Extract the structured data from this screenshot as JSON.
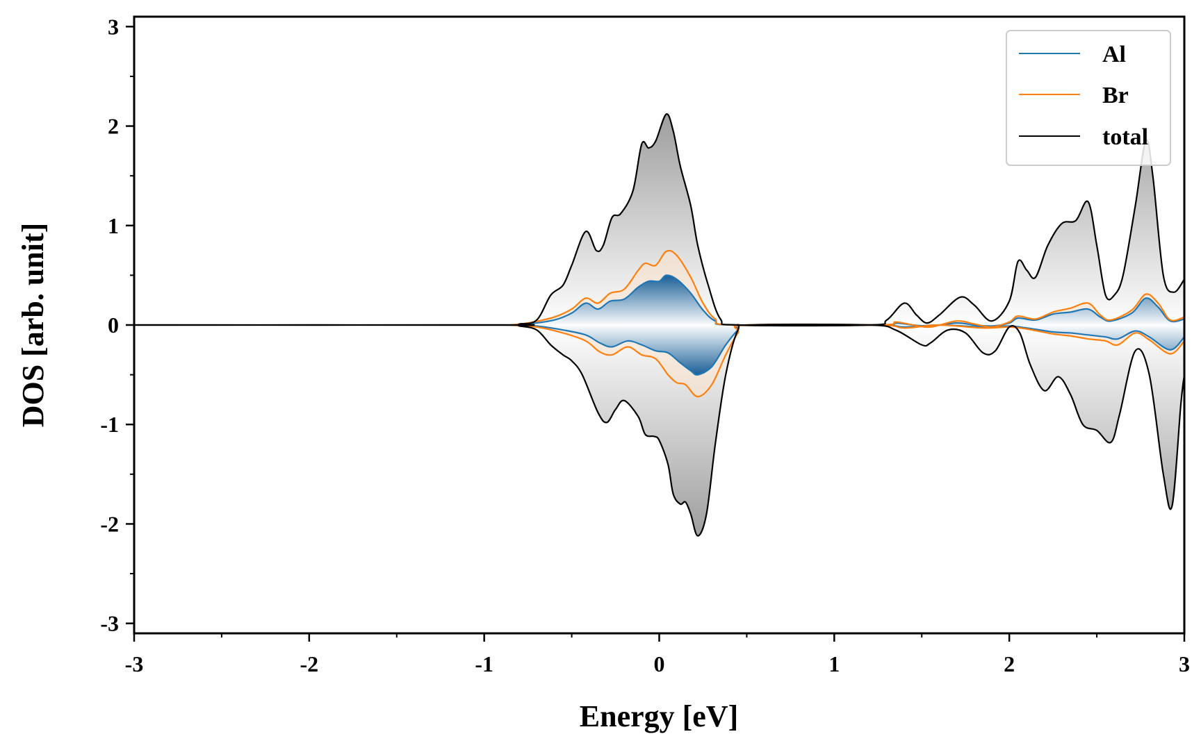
{
  "chart_data": {
    "type": "area",
    "title": "",
    "xlabel": "Energy [eV]",
    "ylabel": "DOS [arb. unit]",
    "xlim": [
      -3,
      3
    ],
    "ylim": [
      -3.1,
      3.1
    ],
    "x_ticks": [
      -3,
      -2,
      -1,
      0,
      1,
      2,
      3
    ],
    "x_tick_labels": [
      "-3",
      "-2",
      "-1",
      "0",
      "1",
      "2",
      "3"
    ],
    "y_ticks": [
      -3,
      -2,
      -1,
      0,
      1,
      2,
      3
    ],
    "y_tick_labels": [
      "-3",
      "-2",
      "-1",
      "0",
      "1",
      "2",
      "3"
    ],
    "grid": false,
    "legend_position": "top-right",
    "spin_resolved": true,
    "series": [
      {
        "name": "Al",
        "color": "#1f77b4",
        "fill": "gradient-blue",
        "up": [
          [
            -0.85,
            0.0
          ],
          [
            -0.75,
            0.01
          ],
          [
            -0.6,
            0.05
          ],
          [
            -0.5,
            0.12
          ],
          [
            -0.42,
            0.22
          ],
          [
            -0.35,
            0.16
          ],
          [
            -0.28,
            0.24
          ],
          [
            -0.2,
            0.26
          ],
          [
            -0.12,
            0.38
          ],
          [
            -0.06,
            0.44
          ],
          [
            0.0,
            0.44
          ],
          [
            0.04,
            0.5
          ],
          [
            0.1,
            0.46
          ],
          [
            0.18,
            0.32
          ],
          [
            0.25,
            0.15
          ],
          [
            0.32,
            0.04
          ],
          [
            0.42,
            0.0
          ],
          [
            1.25,
            0.0
          ],
          [
            1.35,
            0.02
          ],
          [
            1.45,
            0.0
          ],
          [
            1.55,
            -0.01
          ],
          [
            1.7,
            0.02
          ],
          [
            1.8,
            0.0
          ],
          [
            1.9,
            -0.01
          ],
          [
            2.0,
            0.02
          ],
          [
            2.05,
            0.07
          ],
          [
            2.15,
            0.05
          ],
          [
            2.25,
            0.11
          ],
          [
            2.35,
            0.13
          ],
          [
            2.45,
            0.16
          ],
          [
            2.52,
            0.08
          ],
          [
            2.58,
            0.04
          ],
          [
            2.7,
            0.12
          ],
          [
            2.78,
            0.27
          ],
          [
            2.85,
            0.18
          ],
          [
            2.92,
            0.04
          ],
          [
            3.0,
            0.06
          ]
        ],
        "down": [
          [
            -0.85,
            0.0
          ],
          [
            -0.7,
            -0.01
          ],
          [
            -0.55,
            -0.05
          ],
          [
            -0.42,
            -0.1
          ],
          [
            -0.34,
            -0.18
          ],
          [
            -0.27,
            -0.22
          ],
          [
            -0.18,
            -0.16
          ],
          [
            -0.1,
            -0.2
          ],
          [
            -0.02,
            -0.26
          ],
          [
            0.05,
            -0.28
          ],
          [
            0.12,
            -0.38
          ],
          [
            0.18,
            -0.46
          ],
          [
            0.22,
            -0.5
          ],
          [
            0.3,
            -0.42
          ],
          [
            0.38,
            -0.2
          ],
          [
            0.45,
            -0.05
          ],
          [
            0.5,
            0.0
          ],
          [
            1.25,
            0.0
          ],
          [
            1.4,
            -0.02
          ],
          [
            1.6,
            0.0
          ],
          [
            1.85,
            -0.02
          ],
          [
            2.0,
            -0.01
          ],
          [
            2.1,
            -0.03
          ],
          [
            2.25,
            -0.07
          ],
          [
            2.35,
            -0.08
          ],
          [
            2.45,
            -0.1
          ],
          [
            2.55,
            -0.12
          ],
          [
            2.62,
            -0.14
          ],
          [
            2.72,
            -0.06
          ],
          [
            2.8,
            -0.12
          ],
          [
            2.92,
            -0.25
          ],
          [
            3.0,
            -0.12
          ]
        ]
      },
      {
        "name": "Br",
        "color": "#ff7f0e",
        "fill": "#fbe3cf",
        "up": [
          [
            -0.85,
            0.0
          ],
          [
            -0.75,
            0.02
          ],
          [
            -0.6,
            0.08
          ],
          [
            -0.5,
            0.16
          ],
          [
            -0.42,
            0.27
          ],
          [
            -0.35,
            0.22
          ],
          [
            -0.28,
            0.32
          ],
          [
            -0.2,
            0.36
          ],
          [
            -0.12,
            0.55
          ],
          [
            -0.08,
            0.62
          ],
          [
            -0.02,
            0.6
          ],
          [
            0.04,
            0.74
          ],
          [
            0.1,
            0.7
          ],
          [
            0.18,
            0.48
          ],
          [
            0.25,
            0.22
          ],
          [
            0.32,
            0.06
          ],
          [
            0.42,
            0.0
          ],
          [
            1.25,
            0.0
          ],
          [
            1.35,
            0.03
          ],
          [
            1.45,
            0.0
          ],
          [
            1.55,
            -0.02
          ],
          [
            1.7,
            0.04
          ],
          [
            1.8,
            0.01
          ],
          [
            1.9,
            -0.02
          ],
          [
            2.0,
            0.03
          ],
          [
            2.05,
            0.09
          ],
          [
            2.15,
            0.06
          ],
          [
            2.25,
            0.13
          ],
          [
            2.35,
            0.17
          ],
          [
            2.45,
            0.22
          ],
          [
            2.52,
            0.1
          ],
          [
            2.58,
            0.05
          ],
          [
            2.7,
            0.15
          ],
          [
            2.78,
            0.31
          ],
          [
            2.85,
            0.22
          ],
          [
            2.92,
            0.05
          ],
          [
            3.0,
            0.08
          ]
        ],
        "down": [
          [
            -0.85,
            0.0
          ],
          [
            -0.7,
            -0.02
          ],
          [
            -0.55,
            -0.08
          ],
          [
            -0.42,
            -0.16
          ],
          [
            -0.34,
            -0.27
          ],
          [
            -0.27,
            -0.3
          ],
          [
            -0.18,
            -0.22
          ],
          [
            -0.1,
            -0.3
          ],
          [
            -0.02,
            -0.34
          ],
          [
            0.05,
            -0.5
          ],
          [
            0.1,
            -0.58
          ],
          [
            0.15,
            -0.6
          ],
          [
            0.22,
            -0.72
          ],
          [
            0.3,
            -0.6
          ],
          [
            0.38,
            -0.3
          ],
          [
            0.45,
            -0.08
          ],
          [
            0.5,
            0.0
          ],
          [
            1.25,
            0.0
          ],
          [
            1.4,
            -0.03
          ],
          [
            1.6,
            0.0
          ],
          [
            1.85,
            -0.03
          ],
          [
            2.0,
            -0.02
          ],
          [
            2.1,
            -0.04
          ],
          [
            2.25,
            -0.09
          ],
          [
            2.35,
            -0.11
          ],
          [
            2.45,
            -0.14
          ],
          [
            2.55,
            -0.16
          ],
          [
            2.62,
            -0.2
          ],
          [
            2.72,
            -0.08
          ],
          [
            2.8,
            -0.15
          ],
          [
            2.92,
            -0.29
          ],
          [
            3.0,
            -0.16
          ]
        ]
      },
      {
        "name": "total",
        "color": "#000000",
        "fill": "gradient-gray",
        "up": [
          [
            -3.0,
            0.0
          ],
          [
            -0.9,
            0.0
          ],
          [
            -0.8,
            0.01
          ],
          [
            -0.7,
            0.05
          ],
          [
            -0.62,
            0.3
          ],
          [
            -0.55,
            0.4
          ],
          [
            -0.5,
            0.6
          ],
          [
            -0.42,
            0.94
          ],
          [
            -0.36,
            0.75
          ],
          [
            -0.32,
            0.8
          ],
          [
            -0.27,
            1.08
          ],
          [
            -0.22,
            1.12
          ],
          [
            -0.15,
            1.35
          ],
          [
            -0.1,
            1.82
          ],
          [
            -0.06,
            1.78
          ],
          [
            -0.02,
            1.85
          ],
          [
            0.04,
            2.12
          ],
          [
            0.08,
            1.95
          ],
          [
            0.12,
            1.6
          ],
          [
            0.18,
            1.2
          ],
          [
            0.22,
            0.8
          ],
          [
            0.28,
            0.4
          ],
          [
            0.35,
            0.06
          ],
          [
            0.45,
            0.0
          ],
          [
            1.2,
            0.0
          ],
          [
            1.3,
            0.05
          ],
          [
            1.4,
            0.22
          ],
          [
            1.47,
            0.1
          ],
          [
            1.53,
            0.02
          ],
          [
            1.6,
            0.1
          ],
          [
            1.72,
            0.28
          ],
          [
            1.8,
            0.2
          ],
          [
            1.9,
            0.04
          ],
          [
            2.0,
            0.24
          ],
          [
            2.05,
            0.64
          ],
          [
            2.1,
            0.55
          ],
          [
            2.15,
            0.48
          ],
          [
            2.22,
            0.8
          ],
          [
            2.3,
            1.02
          ],
          [
            2.38,
            1.05
          ],
          [
            2.45,
            1.24
          ],
          [
            2.5,
            0.8
          ],
          [
            2.55,
            0.3
          ],
          [
            2.6,
            0.3
          ],
          [
            2.65,
            0.5
          ],
          [
            2.72,
            1.2
          ],
          [
            2.78,
            1.85
          ],
          [
            2.82,
            1.5
          ],
          [
            2.88,
            0.5
          ],
          [
            2.94,
            0.33
          ],
          [
            3.0,
            0.46
          ]
        ],
        "down": [
          [
            -3.0,
            0.0
          ],
          [
            -0.9,
            0.0
          ],
          [
            -0.8,
            -0.01
          ],
          [
            -0.7,
            -0.05
          ],
          [
            -0.62,
            -0.2
          ],
          [
            -0.55,
            -0.3
          ],
          [
            -0.5,
            -0.36
          ],
          [
            -0.44,
            -0.5
          ],
          [
            -0.35,
            -0.88
          ],
          [
            -0.3,
            -0.98
          ],
          [
            -0.25,
            -0.85
          ],
          [
            -0.2,
            -0.76
          ],
          [
            -0.12,
            -0.92
          ],
          [
            -0.08,
            -1.1
          ],
          [
            -0.03,
            -1.12
          ],
          [
            0.0,
            -1.16
          ],
          [
            0.05,
            -1.4
          ],
          [
            0.08,
            -1.7
          ],
          [
            0.12,
            -1.8
          ],
          [
            0.15,
            -1.78
          ],
          [
            0.18,
            -1.9
          ],
          [
            0.22,
            -2.12
          ],
          [
            0.27,
            -1.9
          ],
          [
            0.32,
            -1.2
          ],
          [
            0.38,
            -0.5
          ],
          [
            0.45,
            -0.05
          ],
          [
            0.52,
            0.0
          ],
          [
            1.2,
            0.0
          ],
          [
            1.35,
            -0.05
          ],
          [
            1.5,
            -0.2
          ],
          [
            1.55,
            -0.18
          ],
          [
            1.65,
            -0.05
          ],
          [
            1.75,
            -0.08
          ],
          [
            1.85,
            -0.28
          ],
          [
            1.92,
            -0.26
          ],
          [
            2.0,
            -0.02
          ],
          [
            2.06,
            -0.08
          ],
          [
            2.12,
            -0.4
          ],
          [
            2.2,
            -0.66
          ],
          [
            2.28,
            -0.52
          ],
          [
            2.35,
            -0.7
          ],
          [
            2.42,
            -1.0
          ],
          [
            2.5,
            -1.06
          ],
          [
            2.58,
            -1.18
          ],
          [
            2.63,
            -0.9
          ],
          [
            2.72,
            -0.26
          ],
          [
            2.8,
            -0.5
          ],
          [
            2.88,
            -1.5
          ],
          [
            2.93,
            -1.82
          ],
          [
            2.98,
            -0.8
          ],
          [
            3.0,
            -0.5
          ]
        ]
      }
    ]
  }
}
